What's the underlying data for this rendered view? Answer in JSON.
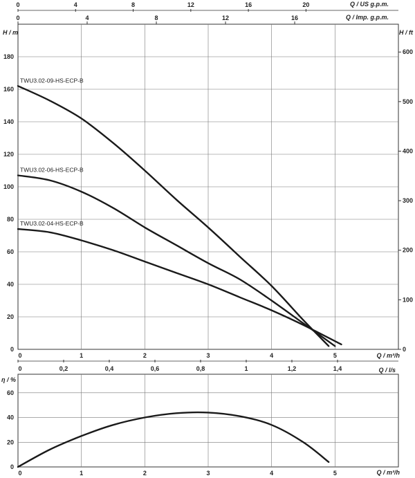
{
  "chart_data": [
    {
      "type": "line",
      "title": "",
      "xlabel": "Q / m³/h",
      "ylabel": "H / m",
      "ylabel_right": "H / ft",
      "xlim": [
        0,
        6
      ],
      "ylim": [
        0,
        200
      ],
      "grid": true,
      "x_ticks": [
        0,
        1,
        2,
        3,
        4,
        5
      ],
      "y_ticks": [
        0,
        20,
        40,
        60,
        80,
        100,
        120,
        140,
        160,
        180
      ],
      "y_right_ticks": [
        0,
        100,
        200,
        300,
        400,
        500,
        600
      ],
      "top_axis_us": {
        "label": "Q / US g.p.m.",
        "ticks": [
          0,
          4,
          8,
          12,
          16,
          20
        ]
      },
      "top_axis_imp": {
        "label": "Q / Imp. g.p.m.",
        "ticks": [
          0,
          4,
          8,
          12,
          16
        ]
      },
      "bottom_axis_ls": {
        "label": "Q / l/s",
        "ticks": [
          "0",
          "0,2",
          "0,4",
          "0,6",
          "0,8",
          "1",
          "1,2",
          "1,4"
        ]
      },
      "series": [
        {
          "name": "TWU3.02-09-HS-ECP-B",
          "x": [
            0,
            0.5,
            1.0,
            1.5,
            2.0,
            2.5,
            3.0,
            3.5,
            4.0,
            4.5,
            4.9
          ],
          "y": [
            162,
            153,
            142,
            127,
            110,
            92,
            75,
            57,
            39,
            18,
            2
          ]
        },
        {
          "name": "TWU3.02-06-HS-ECP-B",
          "x": [
            0,
            0.5,
            1.0,
            1.5,
            2.0,
            2.5,
            3.0,
            3.5,
            4.0,
            4.5,
            5.0
          ],
          "y": [
            107,
            104,
            97,
            87,
            75,
            64,
            53,
            43,
            30,
            16,
            2
          ]
        },
        {
          "name": "TWU3.02-04-HS-ECP-B",
          "x": [
            0,
            0.5,
            1.0,
            1.5,
            2.0,
            2.5,
            3.0,
            3.5,
            4.0,
            4.5,
            5.1
          ],
          "y": [
            74,
            72,
            67,
            61,
            54,
            47,
            40,
            32,
            24,
            15,
            3
          ]
        }
      ]
    },
    {
      "type": "line",
      "title": "",
      "xlabel": "Q / m³/h",
      "ylabel": "η / %",
      "xlim": [
        0,
        6
      ],
      "ylim": [
        0,
        75
      ],
      "grid": true,
      "x_ticks": [
        0,
        1,
        2,
        3,
        4,
        5
      ],
      "y_ticks": [
        0,
        20,
        40,
        60
      ],
      "series": [
        {
          "x": [
            0,
            0.5,
            1.0,
            1.5,
            2.0,
            2.5,
            3.0,
            3.5,
            4.0,
            4.5,
            4.9
          ],
          "y": [
            0,
            14,
            25,
            34,
            40,
            43.5,
            44,
            41,
            34,
            20,
            4
          ]
        }
      ]
    }
  ]
}
